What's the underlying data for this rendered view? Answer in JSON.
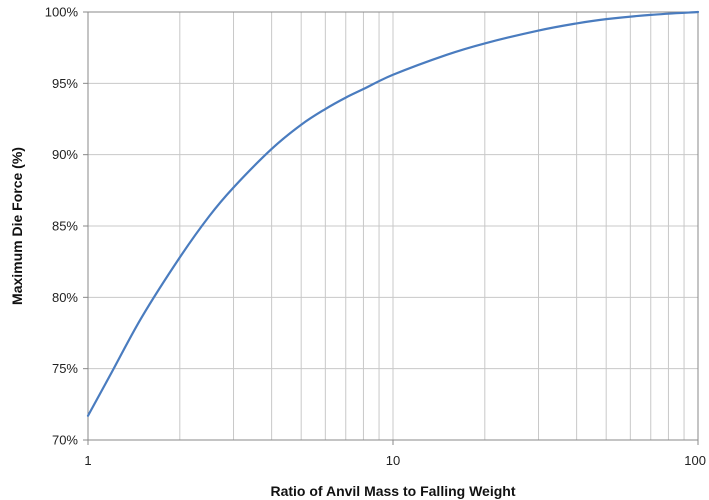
{
  "chart_data": {
    "type": "line",
    "xscale": "log",
    "xlim": [
      1,
      100
    ],
    "ylim": [
      70,
      100
    ],
    "xlabel": "Ratio of Anvil Mass to Falling Weight",
    "ylabel": "Maximum Die Force (%)",
    "grid": true,
    "legend": "none",
    "x_ticks": [
      {
        "value": 1,
        "label": "1"
      },
      {
        "value": 10,
        "label": "10"
      },
      {
        "value": 100,
        "label": "100"
      }
    ],
    "y_ticks": [
      {
        "value": 70,
        "label": "70%"
      },
      {
        "value": 75,
        "label": "75%"
      },
      {
        "value": 80,
        "label": "80%"
      },
      {
        "value": 85,
        "label": "85%"
      },
      {
        "value": 90,
        "label": "90%"
      },
      {
        "value": 95,
        "label": "95%"
      },
      {
        "value": 100,
        "label": "100%"
      }
    ],
    "series": [
      {
        "color": "#4a7cbf",
        "x": [
          1,
          1.2,
          1.5,
          2,
          2.5,
          3,
          4,
          5,
          6,
          7,
          8,
          10,
          15,
          20,
          30,
          40,
          50,
          70,
          100
        ],
        "y": [
          71.7,
          74.8,
          78.6,
          82.8,
          85.7,
          87.7,
          90.4,
          92.1,
          93.2,
          94.0,
          94.6,
          95.6,
          97.0,
          97.8,
          98.7,
          99.2,
          99.5,
          99.8,
          100.0
        ]
      }
    ],
    "colors": {
      "line": "#4a7cbf",
      "grid": "#c8c8c8",
      "axis": "#888888"
    }
  }
}
